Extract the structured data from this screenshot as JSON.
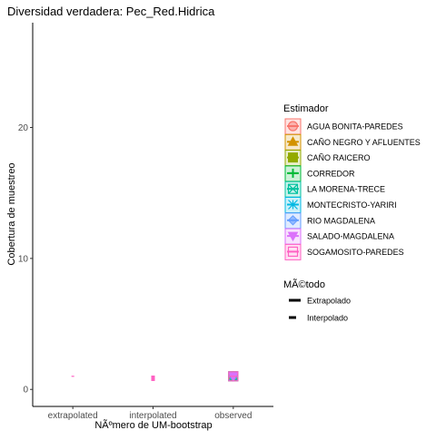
{
  "chart_data": {
    "type": "scatter",
    "title": "Diversidad verdadera: Pec_Red.Hidrica",
    "xlabel": "NÃºmero de UM-bootstrap",
    "ylabel": "Cobertura de muestreo",
    "categories": [
      "extrapolated",
      "interpolated",
      "observed"
    ],
    "y_ticks": [
      0,
      10,
      20
    ],
    "ylim": [
      -1.3,
      28
    ],
    "grid": false,
    "legend_position": "right",
    "color_legend_title": "Estimador",
    "linetype_legend_title": "MÃ©todo",
    "series": [
      {
        "name": "AGUA BONITA-PAREDES",
        "color": "#F8766D",
        "shape": "circle"
      },
      {
        "name": "CAÑO NEGRO Y AFLUENTES",
        "color": "#D39200",
        "shape": "triangle"
      },
      {
        "name": "CAÑO RAICERO",
        "color": "#93AA00",
        "shape": "square"
      },
      {
        "name": "CORREDOR",
        "color": "#00BA38",
        "shape": "plus"
      },
      {
        "name": "LA MORENA-TRECE",
        "color": "#00C19F",
        "shape": "square-cross"
      },
      {
        "name": "MONTECRISTO-YARIRI",
        "color": "#00B9E3",
        "shape": "star"
      },
      {
        "name": "RIO MAGDALENA",
        "color": "#619CFF",
        "shape": "diamond"
      },
      {
        "name": "SALADO-MAGDALENA",
        "color": "#DB72FB",
        "shape": "triangle-down"
      },
      {
        "name": "SOGAMOSITO-PAREDES",
        "color": "#FF61C3",
        "shape": "square-x"
      }
    ],
    "method_legend": [
      {
        "label": "Extrapolado",
        "linetype": "solid"
      },
      {
        "label": "Interpolado",
        "linetype": "dashed"
      }
    ],
    "points": [
      {
        "category": "extrapolated",
        "y": 1.0,
        "series": "SOGAMOSITO-PAREDES"
      },
      {
        "category": "interpolated",
        "y": 0.85,
        "series": "SOGAMOSITO-PAREDES"
      },
      {
        "category": "observed",
        "y": 1.0,
        "series": "AGUA BONITA-PAREDES"
      },
      {
        "category": "observed",
        "y": 1.0,
        "series": "CAÑO NEGRO Y AFLUENTES"
      },
      {
        "category": "observed",
        "y": 1.0,
        "series": "CAÑO RAICERO"
      },
      {
        "category": "observed",
        "y": 1.0,
        "series": "CORREDOR"
      },
      {
        "category": "observed",
        "y": 1.0,
        "series": "LA MORENA-TRECE"
      },
      {
        "category": "observed",
        "y": 1.0,
        "series": "MONTECRISTO-YARIRI"
      },
      {
        "category": "observed",
        "y": 1.0,
        "series": "RIO MAGDALENA"
      },
      {
        "category": "observed",
        "y": 1.0,
        "series": "SALADO-MAGDALENA"
      },
      {
        "category": "observed",
        "y": 1.0,
        "series": "SOGAMOSITO-PAREDES"
      }
    ]
  }
}
